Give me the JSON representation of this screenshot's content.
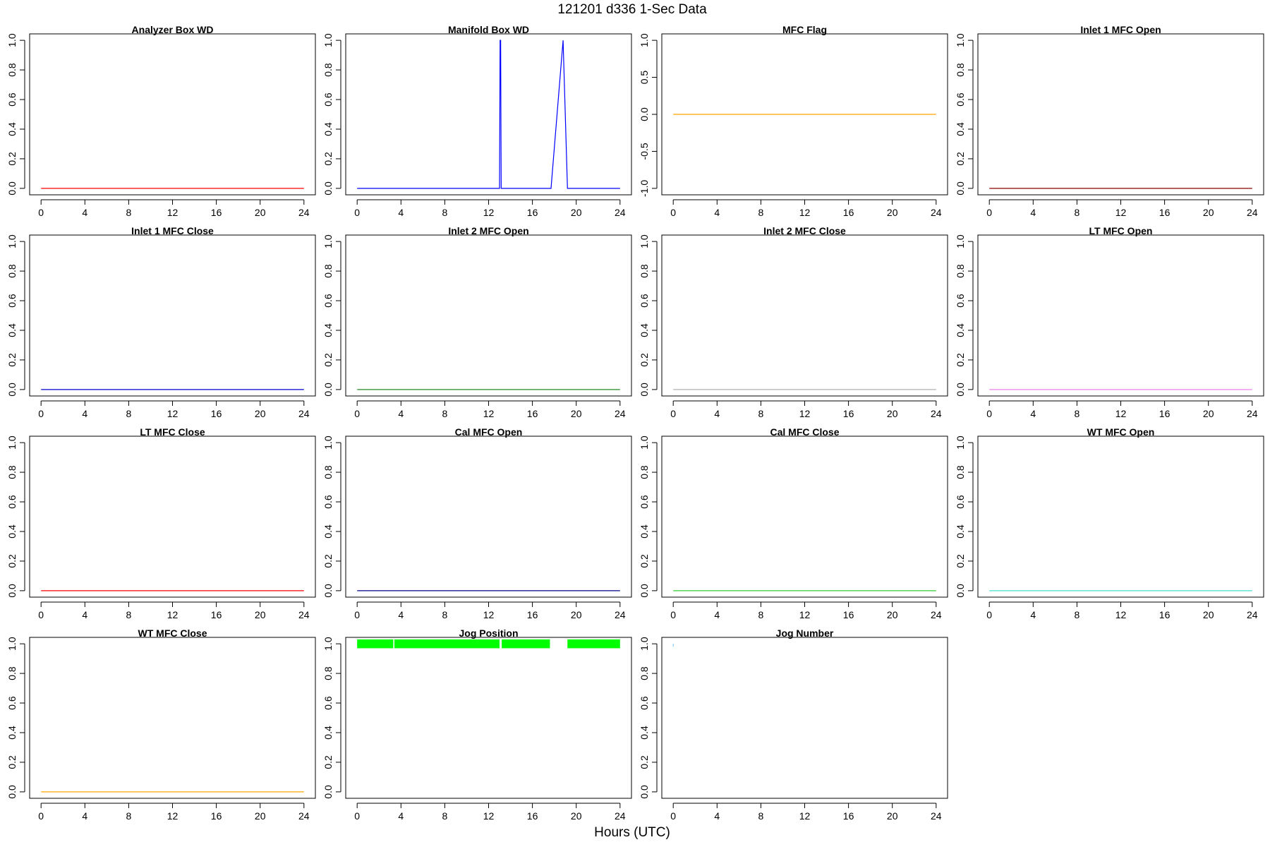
{
  "figure": {
    "title": "121201   d336   1-Sec Data",
    "xlabel": "Hours (UTC)"
  },
  "chart_data": [
    {
      "type": "line",
      "title": "Analyzer Box WD",
      "color": "#ff0000",
      "xlim": [
        0,
        24
      ],
      "ylim": [
        0,
        1
      ],
      "x_ticks": [
        "0",
        "4",
        "8",
        "12",
        "16",
        "20",
        "24"
      ],
      "y_ticks": [
        "0.0",
        "0.2",
        "0.4",
        "0.6",
        "0.8",
        "1.0"
      ],
      "series": [
        {
          "x": [
            0,
            24
          ],
          "y": [
            0,
            0
          ]
        }
      ]
    },
    {
      "type": "line",
      "title": "Manifold Box WD",
      "color": "#0000ff",
      "xlim": [
        0,
        24
      ],
      "ylim": [
        0,
        1
      ],
      "x_ticks": [
        "0",
        "4",
        "8",
        "12",
        "16",
        "20",
        "24"
      ],
      "y_ticks": [
        "0.0",
        "0.2",
        "0.4",
        "0.6",
        "0.8",
        "1.0"
      ],
      "series": [
        {
          "x": [
            0,
            13.0,
            13.05,
            13.1,
            13.15,
            17.7,
            18.8,
            19.2,
            24
          ],
          "y": [
            0,
            0,
            1,
            1,
            0,
            0,
            1,
            0,
            0
          ]
        }
      ]
    },
    {
      "type": "line",
      "title": "MFC Flag",
      "color": "#ffa500",
      "xlim": [
        0,
        24
      ],
      "ylim": [
        -1,
        1
      ],
      "x_ticks": [
        "0",
        "4",
        "8",
        "12",
        "16",
        "20",
        "24"
      ],
      "y_ticks": [
        "-1.0",
        "-0.5",
        "0.0",
        "0.5",
        "1.0"
      ],
      "series": [
        {
          "x": [
            0,
            24
          ],
          "y": [
            0,
            0
          ]
        }
      ]
    },
    {
      "type": "line",
      "title": "Inlet 1 MFC Open",
      "color": "#8b0000",
      "xlim": [
        0,
        24
      ],
      "ylim": [
        0,
        1
      ],
      "x_ticks": [
        "0",
        "4",
        "8",
        "12",
        "16",
        "20",
        "24"
      ],
      "y_ticks": [
        "0.0",
        "0.2",
        "0.4",
        "0.6",
        "0.8",
        "1.0"
      ],
      "series": [
        {
          "x": [
            0,
            24
          ],
          "y": [
            0,
            0
          ]
        }
      ]
    },
    {
      "type": "line",
      "title": "Inlet 1 MFC Close",
      "color": "#0000cd",
      "xlim": [
        0,
        24
      ],
      "ylim": [
        0,
        1
      ],
      "x_ticks": [
        "0",
        "4",
        "8",
        "12",
        "16",
        "20",
        "24"
      ],
      "y_ticks": [
        "0.0",
        "0.2",
        "0.4",
        "0.6",
        "0.8",
        "1.0"
      ],
      "series": [
        {
          "x": [
            0,
            24
          ],
          "y": [
            0,
            0
          ]
        }
      ]
    },
    {
      "type": "line",
      "title": "Inlet 2 MFC Open",
      "color": "#228b22",
      "xlim": [
        0,
        24
      ],
      "ylim": [
        0,
        1
      ],
      "x_ticks": [
        "0",
        "4",
        "8",
        "12",
        "16",
        "20",
        "24"
      ],
      "y_ticks": [
        "0.0",
        "0.2",
        "0.4",
        "0.6",
        "0.8",
        "1.0"
      ],
      "series": [
        {
          "x": [
            0,
            24
          ],
          "y": [
            0,
            0
          ]
        }
      ]
    },
    {
      "type": "line",
      "title": "Inlet 2 MFC Close",
      "color": "#b0b0b0",
      "xlim": [
        0,
        24
      ],
      "ylim": [
        0,
        1
      ],
      "x_ticks": [
        "0",
        "4",
        "8",
        "12",
        "16",
        "20",
        "24"
      ],
      "y_ticks": [
        "0.0",
        "0.2",
        "0.4",
        "0.6",
        "0.8",
        "1.0"
      ],
      "series": [
        {
          "x": [
            0,
            24
          ],
          "y": [
            0,
            0
          ]
        }
      ]
    },
    {
      "type": "line",
      "title": "LT MFC Open",
      "color": "#ee82ee",
      "xlim": [
        0,
        24
      ],
      "ylim": [
        0,
        1
      ],
      "x_ticks": [
        "0",
        "4",
        "8",
        "12",
        "16",
        "20",
        "24"
      ],
      "y_ticks": [
        "0.0",
        "0.2",
        "0.4",
        "0.6",
        "0.8",
        "1.0"
      ],
      "series": [
        {
          "x": [
            0,
            24
          ],
          "y": [
            0,
            0
          ]
        }
      ]
    },
    {
      "type": "line",
      "title": "LT MFC Close",
      "color": "#ff0000",
      "xlim": [
        0,
        24
      ],
      "ylim": [
        0,
        1
      ],
      "x_ticks": [
        "0",
        "4",
        "8",
        "12",
        "16",
        "20",
        "24"
      ],
      "y_ticks": [
        "0.0",
        "0.2",
        "0.4",
        "0.6",
        "0.8",
        "1.0"
      ],
      "series": [
        {
          "x": [
            0,
            24
          ],
          "y": [
            0,
            0
          ]
        }
      ]
    },
    {
      "type": "line",
      "title": "Cal MFC Open",
      "color": "#00008b",
      "xlim": [
        0,
        24
      ],
      "ylim": [
        0,
        1
      ],
      "x_ticks": [
        "0",
        "4",
        "8",
        "12",
        "16",
        "20",
        "24"
      ],
      "y_ticks": [
        "0.0",
        "0.2",
        "0.4",
        "0.6",
        "0.8",
        "1.0"
      ],
      "series": [
        {
          "x": [
            0,
            24
          ],
          "y": [
            0,
            0
          ]
        }
      ]
    },
    {
      "type": "line",
      "title": "Cal MFC Close",
      "color": "#32cd32",
      "xlim": [
        0,
        24
      ],
      "ylim": [
        0,
        1
      ],
      "x_ticks": [
        "0",
        "4",
        "8",
        "12",
        "16",
        "20",
        "24"
      ],
      "y_ticks": [
        "0.0",
        "0.2",
        "0.4",
        "0.6",
        "0.8",
        "1.0"
      ],
      "series": [
        {
          "x": [
            0,
            24
          ],
          "y": [
            0,
            0
          ]
        }
      ]
    },
    {
      "type": "line",
      "title": "WT MFC Open",
      "color": "#40e0d0",
      "xlim": [
        0,
        24
      ],
      "ylim": [
        0,
        1
      ],
      "x_ticks": [
        "0",
        "4",
        "8",
        "12",
        "16",
        "20",
        "24"
      ],
      "y_ticks": [
        "0.0",
        "0.2",
        "0.4",
        "0.6",
        "0.8",
        "1.0"
      ],
      "series": [
        {
          "x": [
            0,
            24
          ],
          "y": [
            0,
            0
          ]
        }
      ]
    },
    {
      "type": "line",
      "title": "WT MFC Close",
      "color": "#ffa500",
      "xlim": [
        0,
        24
      ],
      "ylim": [
        0,
        1
      ],
      "x_ticks": [
        "0",
        "4",
        "8",
        "12",
        "16",
        "20",
        "24"
      ],
      "y_ticks": [
        "0.0",
        "0.2",
        "0.4",
        "0.6",
        "0.8",
        "1.0"
      ],
      "series": [
        {
          "x": [
            0,
            24
          ],
          "y": [
            0,
            0
          ]
        }
      ]
    },
    {
      "type": "line",
      "title": "Jog Position",
      "color": "#00ff00",
      "xlim": [
        0,
        24
      ],
      "ylim": [
        0,
        1
      ],
      "x_ticks": [
        "0",
        "4",
        "8",
        "12",
        "16",
        "20",
        "24"
      ],
      "y_ticks": [
        "0.0",
        "0.2",
        "0.4",
        "0.6",
        "0.8",
        "1.0"
      ],
      "band_ymin": 0.97,
      "band_ymax": 1.03,
      "segments": [
        [
          0,
          3.3
        ],
        [
          3.4,
          13.0
        ],
        [
          13.2,
          17.6
        ],
        [
          19.2,
          24
        ]
      ]
    },
    {
      "type": "line",
      "title": "Jog Number",
      "color": "#87cefa",
      "xlim": [
        0,
        24
      ],
      "ylim": [
        0,
        1
      ],
      "x_ticks": [
        "0",
        "4",
        "8",
        "12",
        "16",
        "20",
        "24"
      ],
      "y_ticks": [
        "0.0",
        "0.2",
        "0.4",
        "0.6",
        "0.8",
        "1.0"
      ],
      "series": [
        {
          "x": [
            0,
            0
          ],
          "y": [
            0.98,
            1.0
          ]
        }
      ]
    }
  ]
}
